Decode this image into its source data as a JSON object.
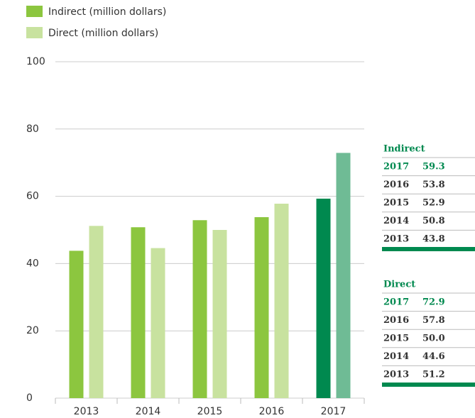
{
  "chart_data": {
    "type": "bar",
    "categories": [
      "2013",
      "2014",
      "2015",
      "2016",
      "2017"
    ],
    "series": [
      {
        "name": "Indirect (million dollars)",
        "color": [
          "#8cc63f",
          "#8cc63f",
          "#8cc63f",
          "#8cc63f",
          "#00894f"
        ],
        "values": [
          43.8,
          50.8,
          52.9,
          53.8,
          59.3
        ],
        "value_labels": [
          "43.8",
          "50.8",
          "52.9",
          "53.8",
          "59.3"
        ]
      },
      {
        "name": "Direct (million dollars)",
        "color": [
          "#c8e29f",
          "#c8e29f",
          "#c8e29f",
          "#c8e29f",
          "#6fbb95"
        ],
        "values": [
          51.2,
          44.6,
          50.0,
          57.8,
          72.9
        ],
        "value_labels": [
          "51.2",
          "44.6",
          "50.0",
          "57.8",
          "72.9"
        ]
      }
    ],
    "table_titles": [
      "Indirect",
      "Direct"
    ],
    "ylim": [
      0,
      100
    ],
    "yticks": [
      0,
      20,
      40,
      60,
      80,
      100
    ],
    "grid": true,
    "legend": "top-left"
  }
}
